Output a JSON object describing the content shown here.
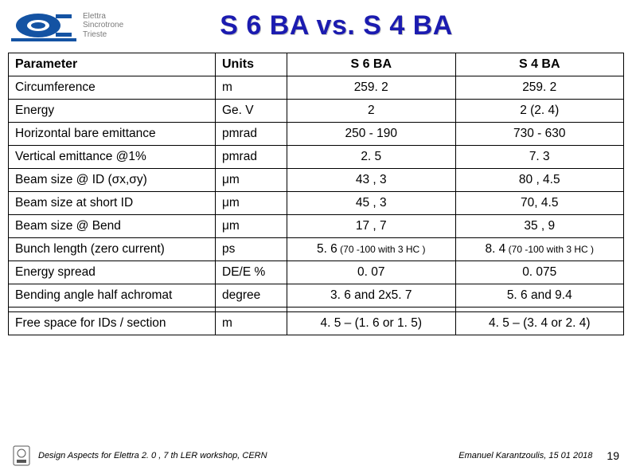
{
  "header": {
    "logo_text_lines": [
      "Elettra",
      "Sincrotrone",
      "Trieste"
    ],
    "title": "S 6 BA vs. S 4 BA"
  },
  "table": {
    "columns": [
      "Parameter",
      "Units",
      "S 6 BA",
      "S 4 BA"
    ],
    "rows": [
      {
        "param": "Circumference",
        "units": "m",
        "s6": "259. 2",
        "s4": "259. 2"
      },
      {
        "param": "Energy",
        "units": "Ge. V",
        "s6": "2",
        "s4": "2   (2. 4)"
      },
      {
        "param": "Horizontal bare emittance",
        "units": "pmrad",
        "s6": "250 - 190",
        "s4": "730  - 630"
      },
      {
        "param": "Vertical      emittance @1%",
        "units": "pmrad",
        "s6": "2. 5",
        "s4": "7. 3"
      },
      {
        "param": "Beam size @ ID (σx,σy)",
        "units": "μm",
        "s6": "43 ,  3",
        "s4": "80 ,  4.5"
      },
      {
        "param": "Beam size at short ID",
        "units": "μm",
        "s6": "45 ,  3",
        "s4": "70,  4.5"
      },
      {
        "param": "Beam size @ Bend",
        "units": "μm",
        "s6": "17 ,  7",
        "s4": "35 , 9"
      },
      {
        "param": "Bunch length (zero current)",
        "units": "ps",
        "s6_main": "5. 6",
        "s6_sub": " (70 -100 with 3 HC )",
        "s4_main": "8. 4",
        "s4_sub": " (70 -100 with 3 HC )"
      },
      {
        "param": "Energy spread",
        "units": "DE/E %",
        "s6": "0. 07",
        "s4": "0. 075"
      },
      {
        "param": "Bending angle half achromat",
        "units": "degree",
        "s6": "3. 6 and 2x5. 7",
        "s4": "5. 6 and 9.4"
      },
      {
        "param": "Free space for IDs / section",
        "units": "m",
        "s6": "4. 5 – (1. 6 or 1. 5)",
        "s4": "4. 5 – (3. 4 or 2. 4)",
        "spacer_before": true
      }
    ]
  },
  "footer": {
    "left_text": "Design Aspects for Elettra 2. 0 ,  7 th LER workshop, CERN",
    "right_text": "Emanuel Karantzoulis, 15  01 2018",
    "page": "19"
  },
  "colors": {
    "title": "#1b1bb0",
    "logo_blue": "#1453a3",
    "accent_gray": "#d9d9d9",
    "accent_olive": "#6e7a00"
  }
}
